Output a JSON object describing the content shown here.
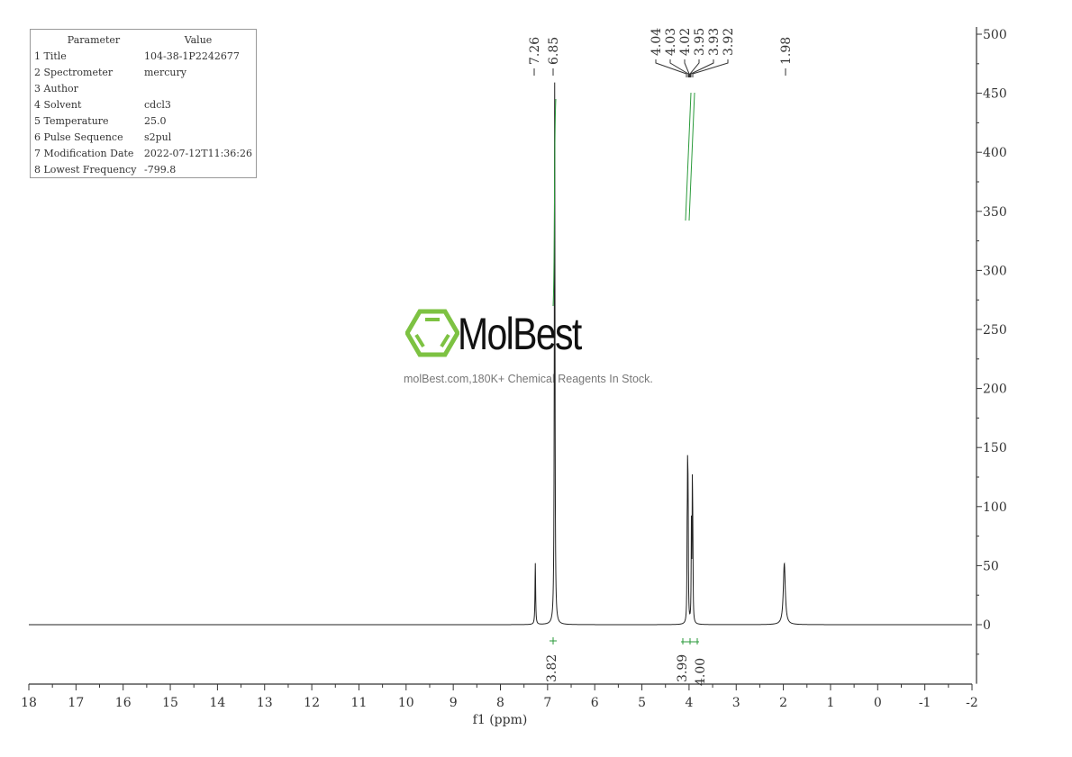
{
  "parameters": {
    "header": {
      "parameter": "Parameter",
      "value": "Value"
    },
    "rows": [
      {
        "key": "1 Title",
        "value": "104-38-1P2242677"
      },
      {
        "key": "2 Spectrometer",
        "value": "mercury"
      },
      {
        "key": "3 Author",
        "value": ""
      },
      {
        "key": "4 Solvent",
        "value": "cdcl3"
      },
      {
        "key": "5 Temperature",
        "value": "25.0"
      },
      {
        "key": "6 Pulse Sequence",
        "value": "s2pul"
      },
      {
        "key": "7 Modification Date",
        "value": "2022-07-12T11:36:26"
      },
      {
        "key": "8 Lowest Frequency",
        "value": "-799.8"
      }
    ]
  },
  "watermark": {
    "brand": "MolBest",
    "tagline": "molBest.com,180K+ Chemical Reagents In Stock.",
    "logo_color": "#7dc242"
  },
  "chart_data": {
    "type": "line",
    "title": "",
    "xlabel": "f1 (ppm)",
    "ylabel": "",
    "xlim": [
      18,
      -2
    ],
    "ylim": [
      -50,
      500
    ],
    "x_ticks": [
      18,
      17,
      16,
      15,
      14,
      13,
      12,
      11,
      10,
      9,
      8,
      7,
      6,
      5,
      4,
      3,
      2,
      1,
      0,
      -1,
      -2
    ],
    "y_ticks": [
      0,
      50,
      100,
      150,
      200,
      250,
      300,
      350,
      400,
      450,
      500
    ],
    "grid": false,
    "colors": {
      "spectrum": "#222222",
      "integral": "#2a9a3a"
    },
    "peaks": [
      {
        "ppm": 7.26,
        "intensity": 52,
        "width": 0.008
      },
      {
        "ppm": 6.85,
        "intensity": 465,
        "width": 0.008
      },
      {
        "ppm": 4.04,
        "intensity": 60,
        "width": 0.006
      },
      {
        "ppm": 4.03,
        "intensity": 110,
        "width": 0.006
      },
      {
        "ppm": 4.02,
        "intensity": 90,
        "width": 0.006
      },
      {
        "ppm": 3.95,
        "intensity": 80,
        "width": 0.006
      },
      {
        "ppm": 3.93,
        "intensity": 110,
        "width": 0.006
      },
      {
        "ppm": 3.92,
        "intensity": 60,
        "width": 0.006
      },
      {
        "ppm": 1.98,
        "intensity": 52,
        "width": 0.025
      }
    ],
    "peak_labels": [
      "7.26",
      "6.85",
      "4.04",
      "4.03",
      "4.02",
      "3.95",
      "3.93",
      "3.92",
      "1.98"
    ],
    "integrals": [
      {
        "from": 6.89,
        "to": 6.81,
        "value": "3.82"
      },
      {
        "from": 4.07,
        "to": 3.985,
        "value": "3.99"
      },
      {
        "from": 3.975,
        "to": 3.89,
        "value": "4.00"
      }
    ]
  }
}
